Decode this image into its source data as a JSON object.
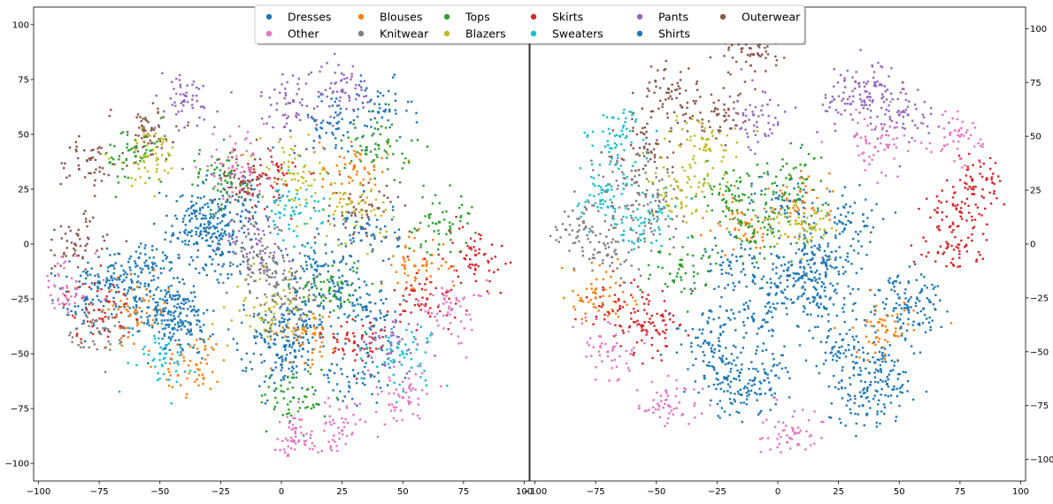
{
  "legend": {
    "placement": "top-center",
    "ncol": 6,
    "entries": [
      {
        "label": "Dresses",
        "color": "#1f77b4"
      },
      {
        "label": "Blouses",
        "color": "#ff7f0e"
      },
      {
        "label": "Tops",
        "color": "#2ca02c"
      },
      {
        "label": "Skirts",
        "color": "#d62728"
      },
      {
        "label": "Pants",
        "color": "#9467bd"
      },
      {
        "label": "Outerwear",
        "color": "#8c564b"
      },
      {
        "label": "Other",
        "color": "#e377c2"
      },
      {
        "label": "Knitwear",
        "color": "#7f7f7f"
      },
      {
        "label": "Blazers",
        "color": "#bcbd22"
      },
      {
        "label": "Sweaters",
        "color": "#17becf"
      },
      {
        "label": "Shirts",
        "color": "#1f77b4"
      }
    ]
  },
  "chart_data": [
    {
      "type": "scatter",
      "title": "",
      "xlabel": "",
      "ylabel": "",
      "xlim": [
        -102,
        102
      ],
      "ylim": [
        -108,
        108
      ],
      "x_ticks": [
        -100,
        -75,
        -50,
        -25,
        0,
        25,
        50,
        75,
        100
      ],
      "y_ticks": [
        -100,
        -75,
        -50,
        -25,
        0,
        25,
        50,
        75,
        100
      ],
      "y_axis_side": "left",
      "grid": false,
      "series": [
        {
          "name": "Dresses",
          "color": "#1f77b4",
          "points": [
            [
              -62,
              -20
            ],
            [
              -50,
              -30
            ],
            [
              -38,
              -40
            ],
            [
              -70,
              -15
            ],
            [
              -35,
              15
            ],
            [
              -30,
              5
            ],
            [
              -5,
              -40
            ],
            [
              0,
              -55
            ],
            [
              5,
              -45
            ],
            [
              10,
              -35
            ],
            [
              30,
              -60
            ],
            [
              -80,
              -25
            ],
            [
              -55,
              -10
            ],
            [
              20,
              55
            ],
            [
              40,
              60
            ],
            [
              35,
              -30
            ],
            [
              -15,
              20
            ],
            [
              25,
              -20
            ],
            [
              -45,
              -25
            ],
            [
              -25,
              -5
            ]
          ]
        },
        {
          "name": "Blouses",
          "color": "#ff7f0e",
          "points": [
            [
              -35,
              -55
            ],
            [
              10,
              -40
            ],
            [
              30,
              35
            ],
            [
              -60,
              -30
            ],
            [
              55,
              -10
            ]
          ]
        },
        {
          "name": "Tops",
          "color": "#2ca02c",
          "points": [
            [
              -25,
              30
            ],
            [
              20,
              -20
            ],
            [
              40,
              45
            ],
            [
              -60,
              40
            ],
            [
              5,
              -70
            ],
            [
              65,
              10
            ]
          ]
        },
        {
          "name": "Skirts",
          "color": "#d62728",
          "points": [
            [
              80,
              -5
            ],
            [
              -75,
              -30
            ],
            [
              30,
              -45
            ],
            [
              -5,
              30
            ],
            [
              60,
              -25
            ]
          ]
        },
        {
          "name": "Pants",
          "color": "#9467bd",
          "points": [
            [
              5,
              65
            ],
            [
              -40,
              65
            ],
            [
              25,
              70
            ],
            [
              -10,
              0
            ],
            [
              45,
              -45
            ]
          ]
        },
        {
          "name": "Outerwear",
          "color": "#8c564b",
          "points": [
            [
              -80,
              38
            ],
            [
              -15,
              28
            ],
            [
              -55,
              50
            ],
            [
              35,
              15
            ],
            [
              -85,
              0
            ]
          ]
        },
        {
          "name": "Other",
          "color": "#e377c2",
          "points": [
            [
              50,
              -70
            ],
            [
              25,
              -85
            ],
            [
              5,
              -90
            ],
            [
              -90,
              -20
            ],
            [
              70,
              -30
            ],
            [
              -20,
              35
            ]
          ]
        },
        {
          "name": "Knitwear",
          "color": "#7f7f7f",
          "points": [
            [
              -5,
              -15
            ],
            [
              -10,
              -5
            ],
            [
              5,
              -25
            ],
            [
              -75,
              -40
            ]
          ]
        },
        {
          "name": "Blazers",
          "color": "#bcbd22",
          "points": [
            [
              5,
              32
            ],
            [
              -55,
              40
            ],
            [
              -5,
              -30
            ],
            [
              30,
              15
            ]
          ]
        },
        {
          "name": "Sweaters",
          "color": "#17becf",
          "points": [
            [
              5,
              15
            ],
            [
              50,
              -50
            ],
            [
              -50,
              -50
            ]
          ]
        },
        {
          "name": "Shirts",
          "color": "#1f77b4",
          "points": [
            [
              -30,
              10
            ],
            [
              15,
              -10
            ],
            [
              -45,
              -35
            ],
            [
              35,
              5
            ]
          ]
        }
      ]
    },
    {
      "type": "scatter",
      "title": "",
      "xlabel": "",
      "ylabel": "",
      "xlim": [
        -102,
        102
      ],
      "ylim": [
        -110,
        110
      ],
      "x_ticks": [
        -100,
        -75,
        -50,
        -25,
        0,
        25,
        50,
        75,
        100
      ],
      "y_ticks": [
        -100,
        -75,
        -50,
        -25,
        0,
        25,
        50,
        75,
        100
      ],
      "y_axis_side": "right",
      "grid": false,
      "series": [
        {
          "name": "Dresses",
          "color": "#1f77b4",
          "points": [
            [
              10,
              -15
            ],
            [
              -5,
              -60
            ],
            [
              25,
              -50
            ],
            [
              45,
              -65
            ],
            [
              -30,
              -45
            ],
            [
              -20,
              -10
            ],
            [
              5,
              20
            ],
            [
              30,
              10
            ],
            [
              -10,
              -35
            ],
            [
              20,
              -30
            ],
            [
              50,
              -25
            ],
            [
              15,
              -5
            ],
            [
              -15,
              -70
            ],
            [
              35,
              -75
            ]
          ]
        },
        {
          "name": "Blouses",
          "color": "#ff7f0e",
          "points": [
            [
              -75,
              -25
            ],
            [
              -15,
              10
            ],
            [
              10,
              20
            ],
            [
              45,
              -40
            ]
          ]
        },
        {
          "name": "Tops",
          "color": "#2ca02c",
          "points": [
            [
              -10,
              5
            ],
            [
              -20,
              25
            ],
            [
              -40,
              -10
            ],
            [
              5,
              30
            ]
          ]
        },
        {
          "name": "Skirts",
          "color": "#d62728",
          "points": [
            [
              75,
              15
            ],
            [
              80,
              30
            ],
            [
              70,
              0
            ],
            [
              -50,
              -40
            ],
            [
              -65,
              -30
            ]
          ]
        },
        {
          "name": "Pants",
          "color": "#9467bd",
          "points": [
            [
              40,
              75
            ],
            [
              30,
              65
            ],
            [
              50,
              60
            ],
            [
              -10,
              60
            ]
          ]
        },
        {
          "name": "Outerwear",
          "color": "#8c564b",
          "points": [
            [
              -45,
              72
            ],
            [
              -10,
              88
            ],
            [
              -25,
              60
            ],
            [
              -55,
              45
            ]
          ]
        },
        {
          "name": "Other",
          "color": "#e377c2",
          "points": [
            [
              -45,
              -75
            ],
            [
              5,
              -90
            ],
            [
              -70,
              -50
            ],
            [
              75,
              50
            ],
            [
              40,
              45
            ]
          ]
        },
        {
          "name": "Knitwear",
          "color": "#7f7f7f",
          "points": [
            [
              -60,
              30
            ],
            [
              -80,
              10
            ],
            [
              -70,
              -5
            ],
            [
              -50,
              15
            ]
          ]
        },
        {
          "name": "Blazers",
          "color": "#bcbd22",
          "points": [
            [
              -30,
              45
            ],
            [
              -40,
              25
            ],
            [
              10,
              10
            ]
          ]
        },
        {
          "name": "Sweaters",
          "color": "#17becf",
          "points": [
            [
              -65,
              50
            ],
            [
              -70,
              25
            ],
            [
              -55,
              10
            ]
          ]
        },
        {
          "name": "Shirts",
          "color": "#1f77b4",
          "points": [
            [
              0,
              -20
            ],
            [
              20,
              -10
            ],
            [
              -25,
              -60
            ],
            [
              40,
              -55
            ],
            [
              60,
              -30
            ]
          ]
        }
      ]
    }
  ]
}
